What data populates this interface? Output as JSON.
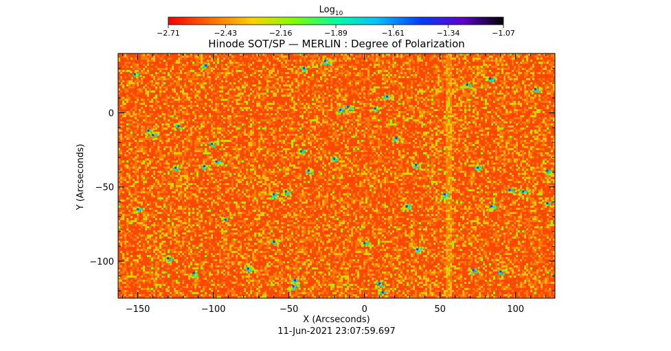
{
  "chart_data": {
    "type": "heatmap",
    "title": "Hinode SOT/SP — MERLIN : Degree of Polarization",
    "xlabel": "X (Arcseconds)",
    "ylabel": "Y (Arcseconds)",
    "timestamp": "11-Jun-2021 23:07:59.697",
    "xlim": [
      -163,
      126
    ],
    "ylim": [
      -125,
      40
    ],
    "x_ticks": [
      -150,
      -100,
      -50,
      0,
      50,
      100
    ],
    "x_tick_labels": [
      "−150",
      "−100",
      "−50",
      "0",
      "50",
      "100"
    ],
    "y_ticks": [
      -100,
      -50,
      0
    ],
    "y_tick_labels": [
      "−100",
      "−50",
      "0"
    ],
    "colorbar": {
      "label": "Log",
      "label_subscript": "10",
      "range": [
        -2.71,
        -1.07
      ],
      "tick_values": [
        -2.71,
        -2.43,
        -2.16,
        -1.89,
        -1.61,
        -1.34,
        -1.07
      ],
      "tick_labels": [
        "−2.71",
        "−2.43",
        "−2.16",
        "−1.89",
        "−1.61",
        "−1.34",
        "−1.07"
      ],
      "colormap": [
        "#ff0000",
        "#ff6a00",
        "#ffd000",
        "#7fff00",
        "#00ffa0",
        "#00c0ff",
        "#0040ff",
        "#6000d0",
        "#000000"
      ]
    },
    "field_colors": {
      "background": "#ff4800",
      "mottle": "#ff7a00",
      "granule": "#ffc000",
      "network": "#a8f000",
      "strong": "#10e8a8",
      "peak": "#1040ff"
    },
    "vertical_streak_x": 56,
    "strong_field_patches": [
      {
        "x": -152,
        "y": 26
      },
      {
        "x": -105,
        "y": 32
      },
      {
        "x": -40,
        "y": 30
      },
      {
        "x": -26,
        "y": 35
      },
      {
        "x": -11,
        "y": 4
      },
      {
        "x": -16,
        "y": 2
      },
      {
        "x": 7,
        "y": 3
      },
      {
        "x": 15,
        "y": 11
      },
      {
        "x": 68,
        "y": 19
      },
      {
        "x": 83,
        "y": 23
      },
      {
        "x": 113,
        "y": 16
      },
      {
        "x": -143,
        "y": -12
      },
      {
        "x": -140,
        "y": -15
      },
      {
        "x": -123,
        "y": -9
      },
      {
        "x": -106,
        "y": -36
      },
      {
        "x": -98,
        "y": -33
      },
      {
        "x": -125,
        "y": -37
      },
      {
        "x": -101,
        "y": -21
      },
      {
        "x": -42,
        "y": -26
      },
      {
        "x": -37,
        "y": -39
      },
      {
        "x": -20,
        "y": -31
      },
      {
        "x": 21,
        "y": -17
      },
      {
        "x": 34,
        "y": -35
      },
      {
        "x": 53,
        "y": -55
      },
      {
        "x": 75,
        "y": -37
      },
      {
        "x": 96,
        "y": -52
      },
      {
        "x": 105,
        "y": -53
      },
      {
        "x": 121,
        "y": -39
      },
      {
        "x": 121,
        "y": -61
      },
      {
        "x": -150,
        "y": -65
      },
      {
        "x": -92,
        "y": -72
      },
      {
        "x": -60,
        "y": -55
      },
      {
        "x": -52,
        "y": -53
      },
      {
        "x": 28,
        "y": -63
      },
      {
        "x": 84,
        "y": -63
      },
      {
        "x": 0,
        "y": -88
      },
      {
        "x": 35,
        "y": -92
      },
      {
        "x": -130,
        "y": -98
      },
      {
        "x": -60,
        "y": -87
      },
      {
        "x": -113,
        "y": -108
      },
      {
        "x": -46,
        "y": -113
      },
      {
        "x": -47,
        "y": -117
      },
      {
        "x": 10,
        "y": -115
      },
      {
        "x": 12,
        "y": -121
      },
      {
        "x": 72,
        "y": -106
      },
      {
        "x": 90,
        "y": -107
      },
      {
        "x": -77,
        "y": -105
      }
    ]
  }
}
